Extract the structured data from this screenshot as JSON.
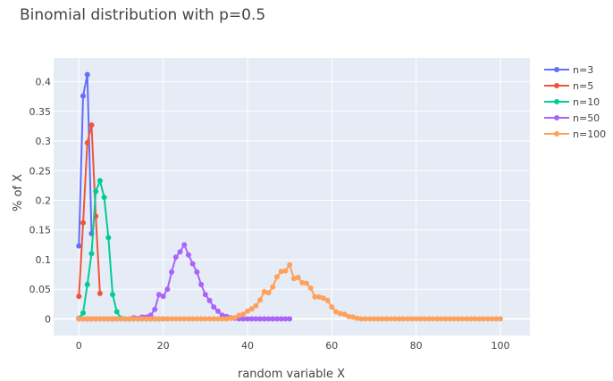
{
  "chart_data": {
    "type": "line",
    "title": "Binomial distribution with p=0.5",
    "xlabel": "random variable X",
    "ylabel": "% of X",
    "xlim": [
      -6,
      107
    ],
    "ylim": [
      -0.028,
      0.44
    ],
    "x_ticks": [
      0,
      20,
      40,
      60,
      80,
      100
    ],
    "y_ticks": [
      0,
      0.05,
      0.1,
      0.15,
      0.2,
      0.25,
      0.3,
      0.35,
      0.4
    ],
    "grid": true,
    "legend_position": "top-right",
    "plot_background": "#e5ecf6",
    "series": [
      {
        "name": "n=3",
        "color": "#636efa",
        "x": [
          0,
          1,
          2,
          3
        ],
        "y": [
          0.123,
          0.376,
          0.412,
          0.144
        ]
      },
      {
        "name": "n=5",
        "color": "#ef553b",
        "x": [
          0,
          1,
          2,
          3,
          4,
          5
        ],
        "y": [
          0.038,
          0.162,
          0.297,
          0.327,
          0.173,
          0.043
        ]
      },
      {
        "name": "n=10",
        "color": "#00cc96",
        "x": [
          0,
          1,
          2,
          3,
          4,
          5,
          6,
          7,
          8,
          9,
          10,
          11,
          12,
          13,
          14,
          15,
          16,
          17,
          18,
          19,
          20
        ],
        "y": [
          0.001,
          0.01,
          0.058,
          0.11,
          0.215,
          0.233,
          0.205,
          0.137,
          0.041,
          0.012,
          0.001,
          0,
          0,
          0,
          0,
          0,
          0,
          0,
          0,
          0,
          0
        ]
      },
      {
        "name": "n=50",
        "color": "#ab63fa",
        "x": [
          0,
          1,
          2,
          3,
          4,
          5,
          6,
          7,
          8,
          9,
          10,
          11,
          12,
          13,
          14,
          15,
          16,
          17,
          18,
          19,
          20,
          21,
          22,
          23,
          24,
          25,
          26,
          27,
          28,
          29,
          30,
          31,
          32,
          33,
          34,
          35,
          36,
          37,
          38,
          39,
          40,
          41,
          42,
          43,
          44,
          45,
          46,
          47,
          48,
          49,
          50
        ],
        "y": [
          0,
          0,
          0,
          0,
          0,
          0,
          0,
          0,
          0,
          0,
          0,
          0,
          0,
          0.002,
          0.001,
          0.003,
          0.003,
          0.006,
          0.016,
          0.041,
          0.038,
          0.05,
          0.079,
          0.104,
          0.113,
          0.125,
          0.108,
          0.093,
          0.079,
          0.058,
          0.041,
          0.031,
          0.02,
          0.013,
          0.006,
          0.004,
          0.002,
          0.001,
          0,
          0,
          0,
          0,
          0,
          0,
          0,
          0,
          0,
          0,
          0,
          0,
          0
        ]
      },
      {
        "name": "n=100",
        "color": "#ffa15a",
        "x": [
          0,
          1,
          2,
          3,
          4,
          5,
          6,
          7,
          8,
          9,
          10,
          11,
          12,
          13,
          14,
          15,
          16,
          17,
          18,
          19,
          20,
          21,
          22,
          23,
          24,
          25,
          26,
          27,
          28,
          29,
          30,
          31,
          32,
          33,
          34,
          35,
          36,
          37,
          38,
          39,
          40,
          41,
          42,
          43,
          44,
          45,
          46,
          47,
          48,
          49,
          50,
          51,
          52,
          53,
          54,
          55,
          56,
          57,
          58,
          59,
          60,
          61,
          62,
          63,
          64,
          65,
          66,
          67,
          68,
          69,
          70,
          71,
          72,
          73,
          74,
          75,
          76,
          77,
          78,
          79,
          80,
          81,
          82,
          83,
          84,
          85,
          86,
          87,
          88,
          89,
          90,
          91,
          92,
          93,
          94,
          95,
          96,
          97,
          98,
          99,
          100
        ],
        "y": [
          0,
          0,
          0,
          0,
          0,
          0,
          0,
          0,
          0,
          0,
          0,
          0,
          0,
          0,
          0,
          0,
          0,
          0,
          0,
          0,
          0,
          0,
          0,
          0,
          0,
          0,
          0,
          0,
          0,
          0,
          0,
          0,
          0,
          0,
          0,
          0,
          0.001,
          0.002,
          0.006,
          0.008,
          0.013,
          0.017,
          0.022,
          0.032,
          0.046,
          0.044,
          0.054,
          0.071,
          0.08,
          0.081,
          0.091,
          0.068,
          0.07,
          0.061,
          0.06,
          0.052,
          0.037,
          0.037,
          0.035,
          0.031,
          0.02,
          0.012,
          0.009,
          0.008,
          0.004,
          0.003,
          0.001,
          0,
          0,
          0,
          0,
          0,
          0,
          0,
          0,
          0,
          0,
          0,
          0,
          0,
          0,
          0,
          0,
          0,
          0,
          0,
          0,
          0,
          0,
          0,
          0,
          0,
          0,
          0,
          0,
          0,
          0,
          0,
          0,
          0,
          0
        ]
      }
    ]
  }
}
